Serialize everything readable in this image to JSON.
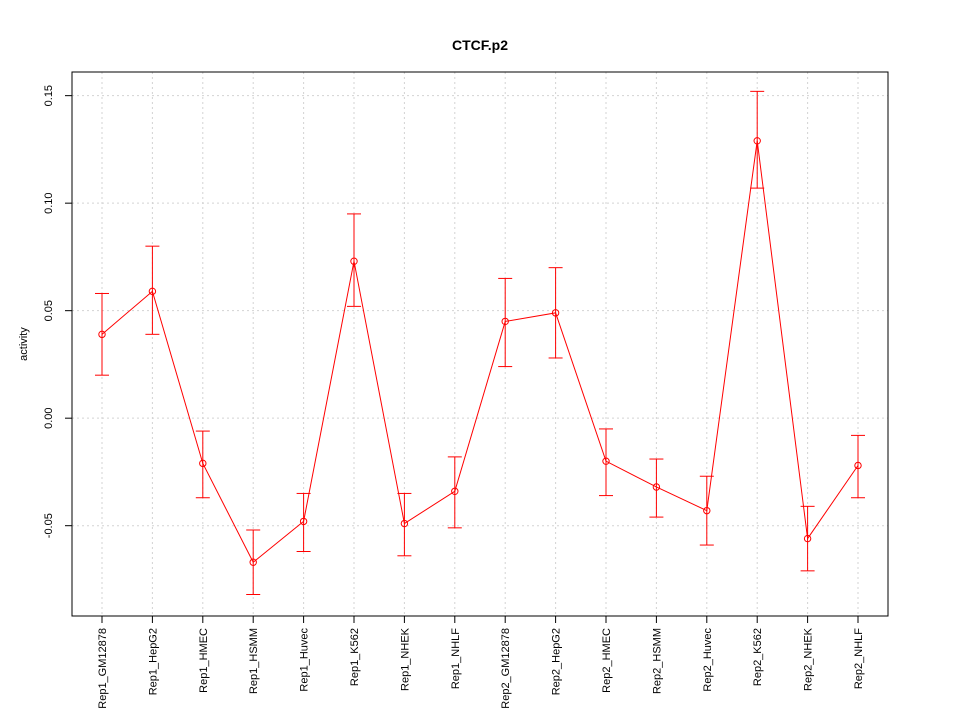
{
  "chart_data": {
    "type": "line",
    "title": "CTCF.p2",
    "xlabel": "",
    "ylabel": "activity",
    "categories": [
      "Rep1_GM12878",
      "Rep1_HepG2",
      "Rep1_HMEC",
      "Rep1_HSMM",
      "Rep1_Huvec",
      "Rep1_K562",
      "Rep1_NHEK",
      "Rep1_NHLF",
      "Rep2_GM12878",
      "Rep2_HepG2",
      "Rep2_HMEC",
      "Rep2_HSMM",
      "Rep2_Huvec",
      "Rep2_K562",
      "Rep2_NHEK",
      "Rep2_NHLF"
    ],
    "series": [
      {
        "values": [
          0.039,
          0.059,
          -0.021,
          -0.067,
          -0.048,
          0.073,
          -0.049,
          -0.034,
          0.045,
          0.049,
          -0.02,
          -0.032,
          -0.043,
          0.129,
          -0.056,
          -0.022
        ],
        "upper": [
          0.058,
          0.08,
          -0.006,
          -0.052,
          -0.035,
          0.095,
          -0.035,
          -0.018,
          0.065,
          0.07,
          -0.005,
          -0.019,
          -0.027,
          0.152,
          -0.041,
          -0.008
        ],
        "lower": [
          0.02,
          0.039,
          -0.037,
          -0.082,
          -0.062,
          0.052,
          -0.064,
          -0.051,
          0.024,
          0.028,
          -0.036,
          -0.046,
          -0.059,
          0.107,
          -0.071,
          -0.037
        ]
      }
    ],
    "ylim": [
      -0.092,
      0.161
    ],
    "yticks": [
      -0.05,
      0.0,
      0.05,
      0.1,
      0.15
    ],
    "ytick_labels": [
      "-0.05",
      "0.00",
      "0.05",
      "0.10",
      "0.15"
    ],
    "grid": true,
    "color": "#ff0000"
  }
}
